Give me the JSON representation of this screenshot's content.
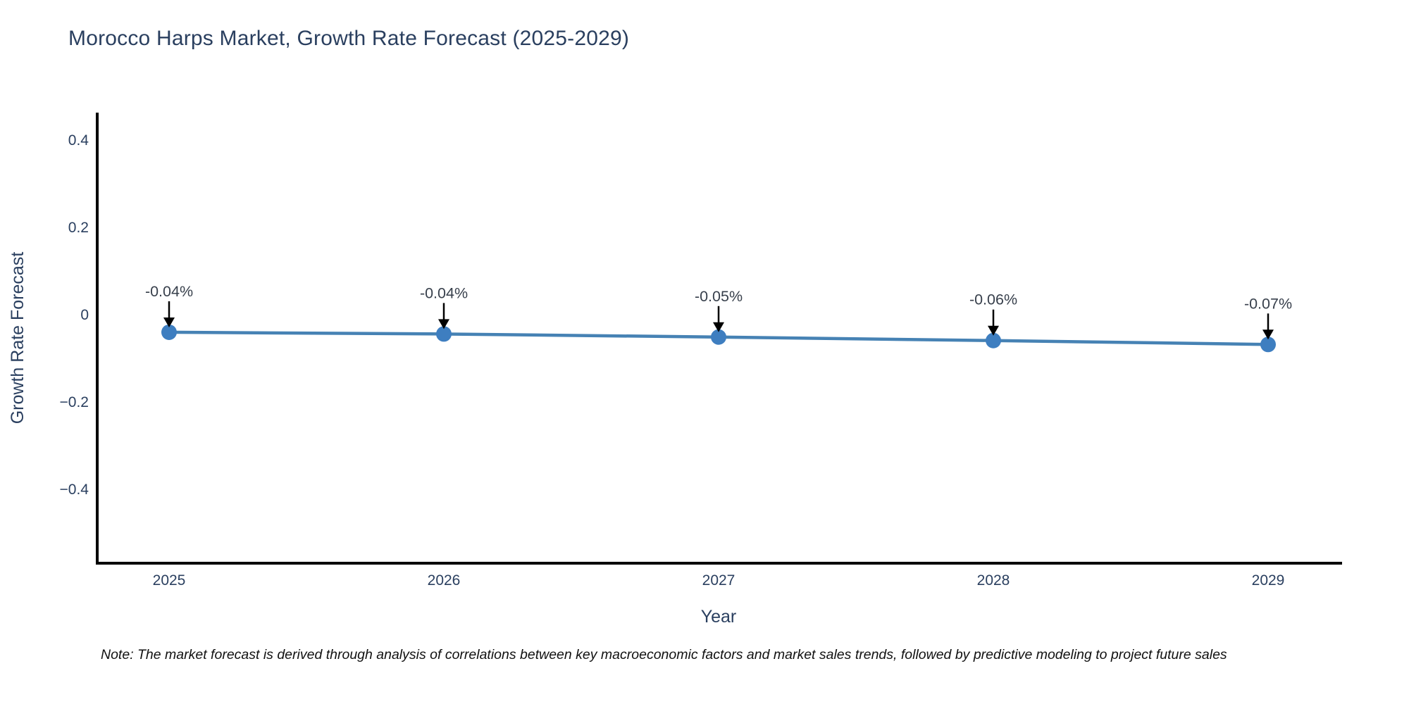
{
  "title": "Morocco Harps Market, Growth Rate Forecast (2025-2029)",
  "note": "Note: The market forecast is derived through analysis of correlations between key macroeconomic factors and market sales trends, followed by predictive modeling to project future sales",
  "chart_data": {
    "type": "line",
    "title": "Morocco Harps Market, Growth Rate Forecast (2025-2029)",
    "x": [
      2025,
      2026,
      2027,
      2028,
      2029
    ],
    "values": [
      -0.04,
      -0.044,
      -0.051,
      -0.059,
      -0.068
    ],
    "point_labels": [
      "-0.04%",
      "-0.04%",
      "-0.05%",
      "-0.06%",
      "-0.07%"
    ],
    "xlabel": "Year",
    "ylabel": "Growth Rate Forecast",
    "yticks": [
      0.4,
      0.2,
      0,
      -0.2,
      -0.4
    ],
    "ylim": [
      -0.569,
      0.463
    ],
    "grid": false,
    "legend": "none",
    "colors": {
      "line": "#4682b4",
      "marker": "#3e7ec0",
      "axis": "#000000",
      "text": "#2a3f5f",
      "annotation_text": "#38404c",
      "annotation_arrow": "#000000"
    }
  }
}
